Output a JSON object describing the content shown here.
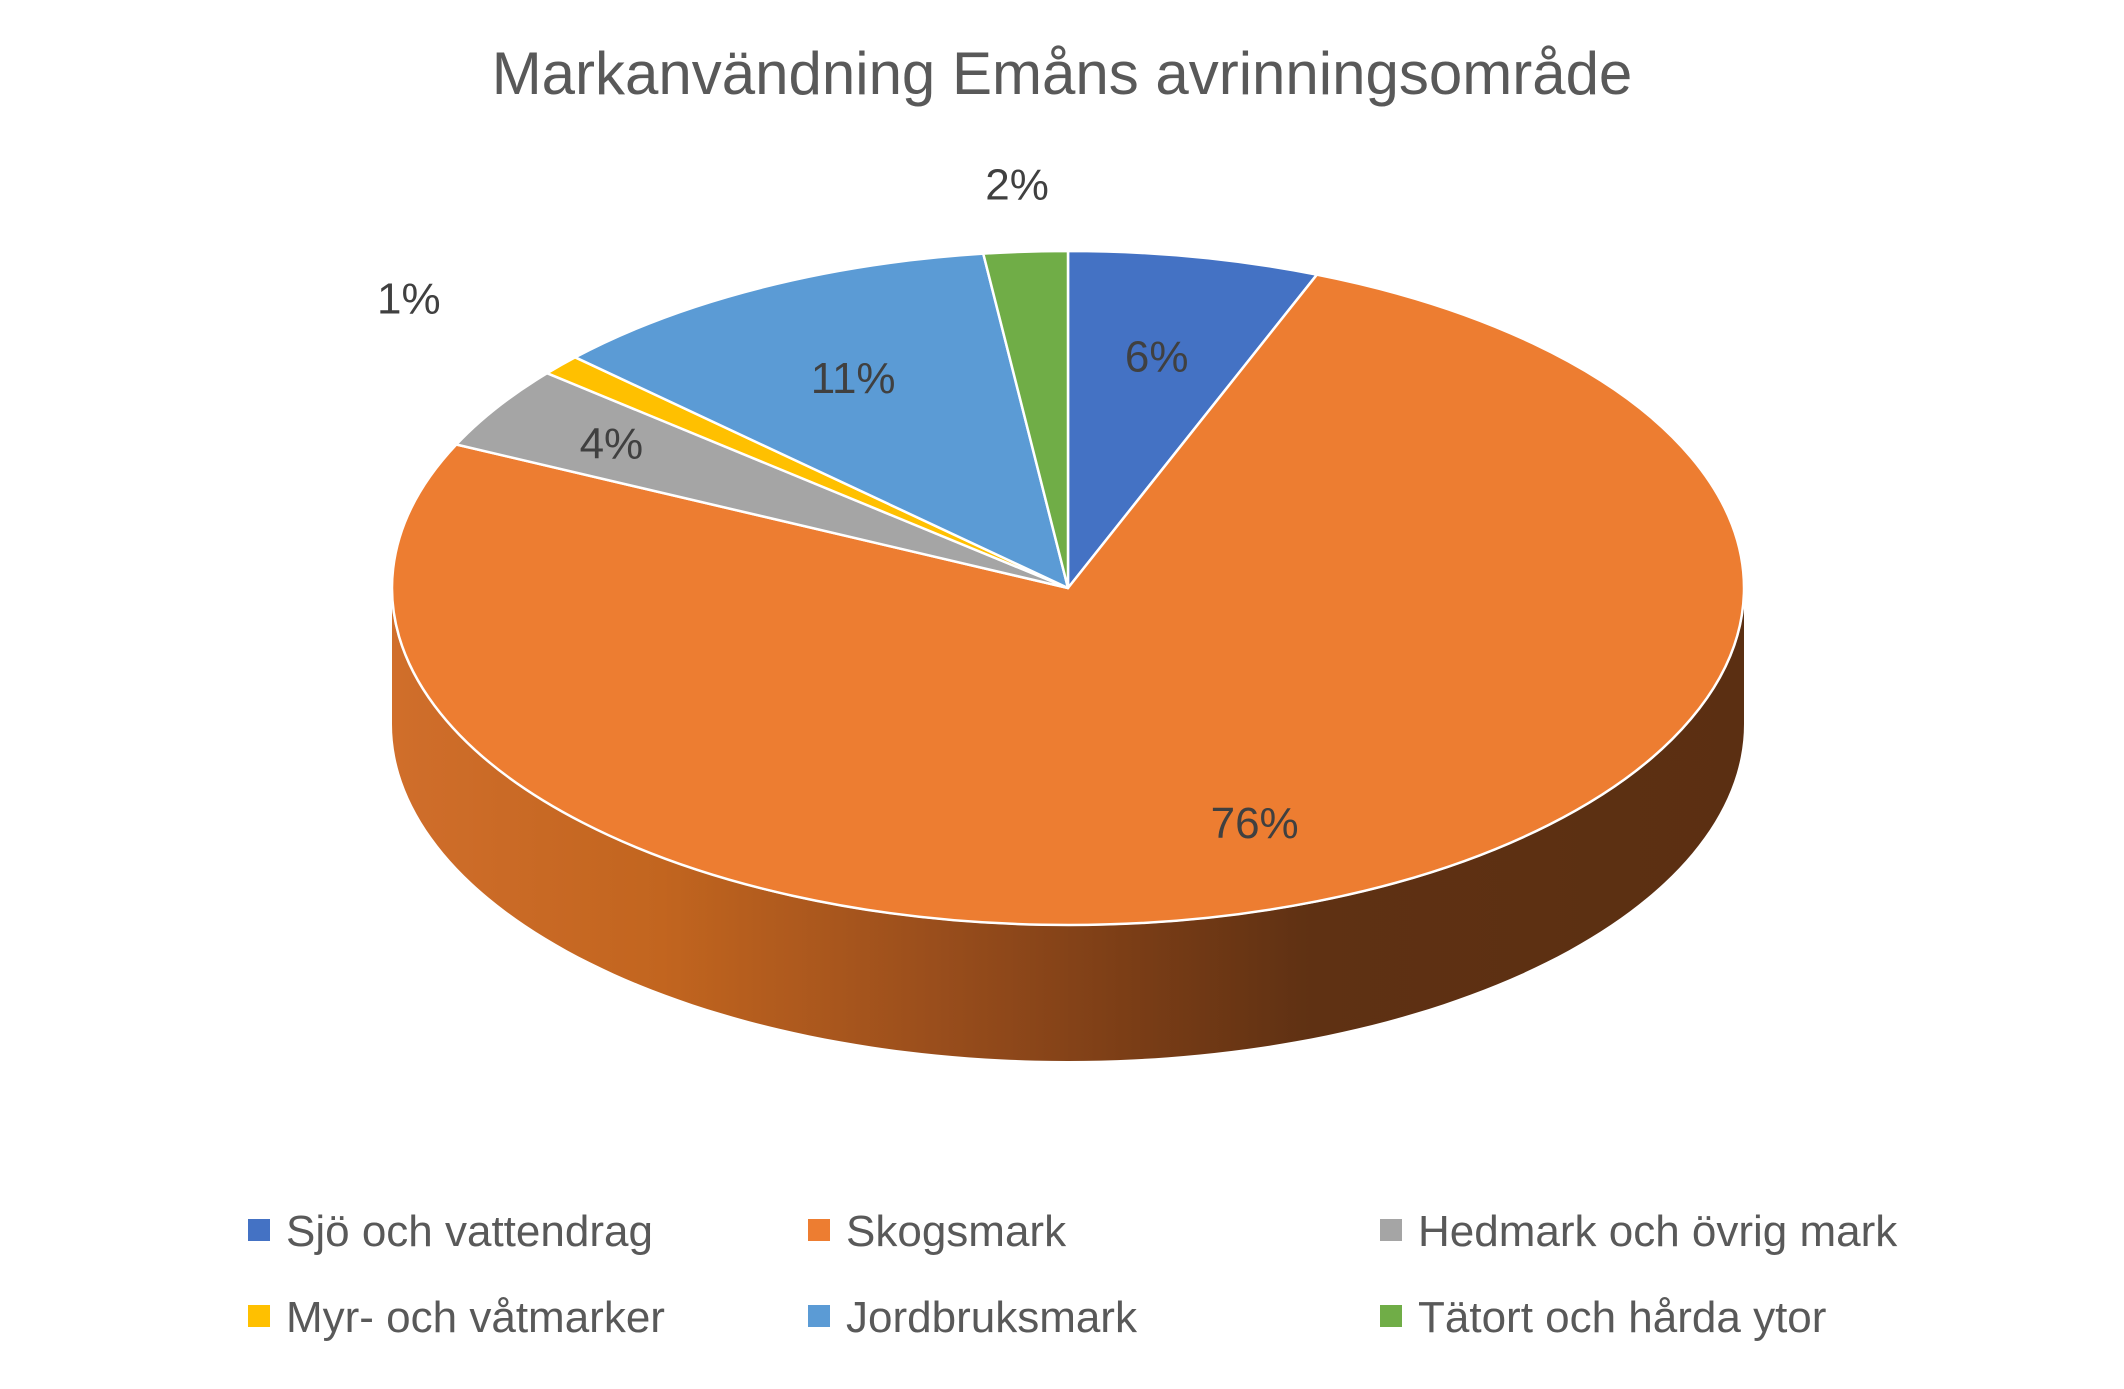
{
  "chart_data": {
    "type": "pie",
    "title": "Markanvändning Emåns avrinningsområde",
    "categories": [
      "Sjö och vattendrag",
      "Skogsmark",
      "Hedmark och övrig mark",
      "Myr- och våtmarker",
      "Jordbruksmark",
      "Tätort och hårda ytor"
    ],
    "values": [
      6,
      76,
      4,
      1,
      11,
      2
    ],
    "data_labels": [
      "6%",
      "76%",
      "4%",
      "1%",
      "11%",
      "2%"
    ],
    "colors": [
      "#4472C4",
      "#ED7D31",
      "#A5A5A5",
      "#FFC000",
      "#5B9BD5",
      "#70AD47"
    ],
    "legend_position": "bottom",
    "style": "3d"
  }
}
